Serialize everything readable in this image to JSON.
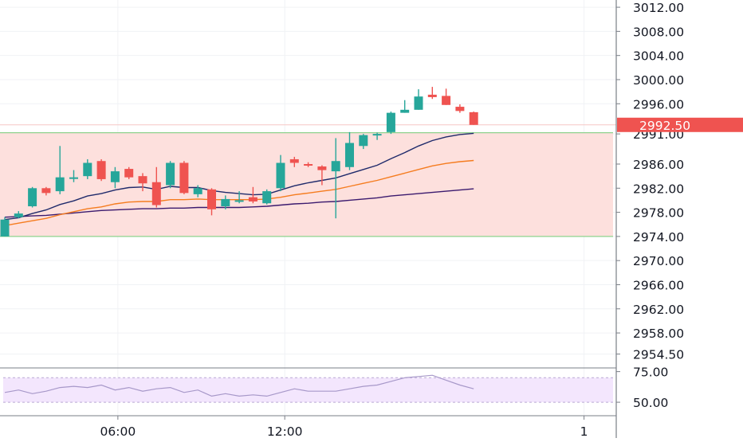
{
  "chart_data": {
    "type": "candlestick",
    "symbol_timeframe": "",
    "main": {
      "ylim": [
        2952.2,
        3013.2
      ],
      "y_ticks": [
        "3012.00",
        "3008.00",
        "3004.00",
        "3000.00",
        "2996.00",
        "2991.00",
        "2986.00",
        "2982.00",
        "2978.00",
        "2974.00",
        "2970.00",
        "2966.00",
        "2962.00",
        "2958.00",
        "2954.50"
      ],
      "y_tick_values": [
        3012,
        3008,
        3004,
        3000,
        2996,
        2991,
        2986,
        2982,
        2978,
        2974,
        2970,
        2966,
        2962,
        2958,
        2954.5
      ],
      "x_ticks": [
        "06:00",
        "12:00",
        "1"
      ],
      "x_tick_index": [
        8.2,
        20.3,
        42
      ],
      "last_price_label": "2992.50",
      "last_price_value": 2992.5,
      "range_zone": {
        "low": 2974.0,
        "high": 2991.2
      },
      "colors": {
        "up": "#26a69a",
        "down": "#ef5350",
        "zone_fill": "#fde0dd",
        "zone_line": "#8ed28e",
        "ema_fast": "#1f2a6b",
        "ema_mid": "#f57c1f",
        "ema_slow": "#3b1a6e",
        "rsi_line": "#a798c9",
        "rsi_bg": "#f3e6fd"
      },
      "candles": [
        {
          "o": 2974.0,
          "h": 2977.2,
          "l": 2974.0,
          "c": 2976.8
        },
        {
          "o": 2977.2,
          "h": 2978.2,
          "l": 2977.0,
          "c": 2977.8
        },
        {
          "o": 2979.0,
          "h": 2982.2,
          "l": 2978.8,
          "c": 2982.0
        },
        {
          "o": 2982.0,
          "h": 2982.2,
          "l": 2980.8,
          "c": 2981.2
        },
        {
          "o": 2981.5,
          "h": 2989.0,
          "l": 2981.0,
          "c": 2983.8
        },
        {
          "o": 2983.8,
          "h": 2985.0,
          "l": 2983.0,
          "c": 2983.8
        },
        {
          "o": 2984.0,
          "h": 2986.8,
          "l": 2983.5,
          "c": 2986.2
        },
        {
          "o": 2986.5,
          "h": 2986.8,
          "l": 2983.2,
          "c": 2983.5
        },
        {
          "o": 2983.0,
          "h": 2985.5,
          "l": 2982.0,
          "c": 2984.8
        },
        {
          "o": 2985.2,
          "h": 2985.5,
          "l": 2983.5,
          "c": 2983.8
        },
        {
          "o": 2984.0,
          "h": 2984.5,
          "l": 2981.5,
          "c": 2982.8
        },
        {
          "o": 2983.0,
          "h": 2985.5,
          "l": 2978.8,
          "c": 2979.2
        },
        {
          "o": 2982.5,
          "h": 2986.5,
          "l": 2982.0,
          "c": 2986.2
        },
        {
          "o": 2986.2,
          "h": 2986.5,
          "l": 2981.0,
          "c": 2981.2
        },
        {
          "o": 2981.0,
          "h": 2982.5,
          "l": 2980.5,
          "c": 2982.0
        },
        {
          "o": 2981.8,
          "h": 2982.0,
          "l": 2977.5,
          "c": 2978.5
        },
        {
          "o": 2979.0,
          "h": 2980.8,
          "l": 2978.5,
          "c": 2980.2
        },
        {
          "o": 2980.0,
          "h": 2981.5,
          "l": 2979.5,
          "c": 2980.0
        },
        {
          "o": 2980.5,
          "h": 2982.2,
          "l": 2979.5,
          "c": 2979.8
        },
        {
          "o": 2979.5,
          "h": 2981.8,
          "l": 2979.3,
          "c": 2981.5
        },
        {
          "o": 2982.0,
          "h": 2987.5,
          "l": 2981.5,
          "c": 2986.2
        },
        {
          "o": 2986.8,
          "h": 2987.2,
          "l": 2985.5,
          "c": 2986.2
        },
        {
          "o": 2986.0,
          "h": 2986.3,
          "l": 2985.5,
          "c": 2985.8
        },
        {
          "o": 2985.6,
          "h": 2985.8,
          "l": 2982.5,
          "c": 2985.0
        },
        {
          "o": 2984.8,
          "h": 2990.3,
          "l": 2977.0,
          "c": 2986.5
        },
        {
          "o": 2985.5,
          "h": 2991.3,
          "l": 2985.0,
          "c": 2989.5
        },
        {
          "o": 2989.0,
          "h": 2991.0,
          "l": 2988.5,
          "c": 2990.8
        },
        {
          "o": 2991.0,
          "h": 2991.2,
          "l": 2990.0,
          "c": 2991.0
        },
        {
          "o": 2991.3,
          "h": 2994.7,
          "l": 2991.0,
          "c": 2994.5
        },
        {
          "o": 2994.5,
          "h": 2996.6,
          "l": 2994.5,
          "c": 2995.0
        },
        {
          "o": 2995.0,
          "h": 2998.4,
          "l": 2995.0,
          "c": 2997.2
        },
        {
          "o": 2997.5,
          "h": 2998.8,
          "l": 2996.8,
          "c": 2997.1
        },
        {
          "o": 2997.3,
          "h": 2998.5,
          "l": 2995.8,
          "c": 2995.8
        },
        {
          "o": 2995.5,
          "h": 2995.9,
          "l": 2994.5,
          "c": 2994.8
        },
        {
          "o": 2994.6,
          "h": 2994.7,
          "l": 2992.5,
          "c": 2992.5
        }
      ],
      "ema_fast": [
        2976.8,
        2977.1,
        2977.8,
        2978.4,
        2979.3,
        2979.9,
        2980.7,
        2981.1,
        2981.7,
        2982.1,
        2982.2,
        2981.8,
        2982.3,
        2982.1,
        2982.1,
        2981.6,
        2981.3,
        2981.1,
        2980.9,
        2981.0,
        2981.7,
        2982.4,
        2982.9,
        2983.3,
        2983.7,
        2984.4,
        2985.1,
        2985.8,
        2986.9,
        2987.9,
        2989.0,
        2989.9,
        2990.5,
        2990.9,
        2991.1
      ],
      "ema_mid": [
        2975.8,
        2976.2,
        2976.6,
        2977.0,
        2977.6,
        2978.1,
        2978.6,
        2978.9,
        2979.4,
        2979.7,
        2979.8,
        2979.8,
        2980.1,
        2980.1,
        2980.2,
        2980.1,
        2980.1,
        2980.1,
        2980.1,
        2980.2,
        2980.5,
        2980.9,
        2981.2,
        2981.5,
        2981.8,
        2982.3,
        2982.8,
        2983.3,
        2983.9,
        2984.5,
        2985.1,
        2985.7,
        2986.1,
        2986.4,
        2986.6
      ],
      "ema_slow": [
        2977.2,
        2977.3,
        2977.4,
        2977.5,
        2977.7,
        2977.9,
        2978.1,
        2978.3,
        2978.4,
        2978.5,
        2978.6,
        2978.6,
        2978.7,
        2978.7,
        2978.8,
        2978.8,
        2978.8,
        2978.8,
        2978.9,
        2979.0,
        2979.2,
        2979.4,
        2979.5,
        2979.7,
        2979.8,
        2980.0,
        2980.2,
        2980.4,
        2980.7,
        2980.9,
        2981.1,
        2981.3,
        2981.5,
        2981.7,
        2981.9
      ]
    },
    "rsi": {
      "ylim": [
        39,
        78
      ],
      "y_ticks": [
        "75.00",
        "50.00"
      ],
      "y_tick_values": [
        75,
        50
      ],
      "band": [
        50,
        70
      ],
      "values": [
        58,
        60,
        57,
        59,
        62,
        63,
        62,
        64,
        60,
        62,
        59,
        61,
        62,
        58,
        60,
        55,
        57,
        55,
        56,
        55,
        58,
        61,
        59,
        59,
        59,
        61,
        63,
        64,
        67,
        70,
        71,
        72,
        68,
        64,
        61
      ]
    }
  }
}
